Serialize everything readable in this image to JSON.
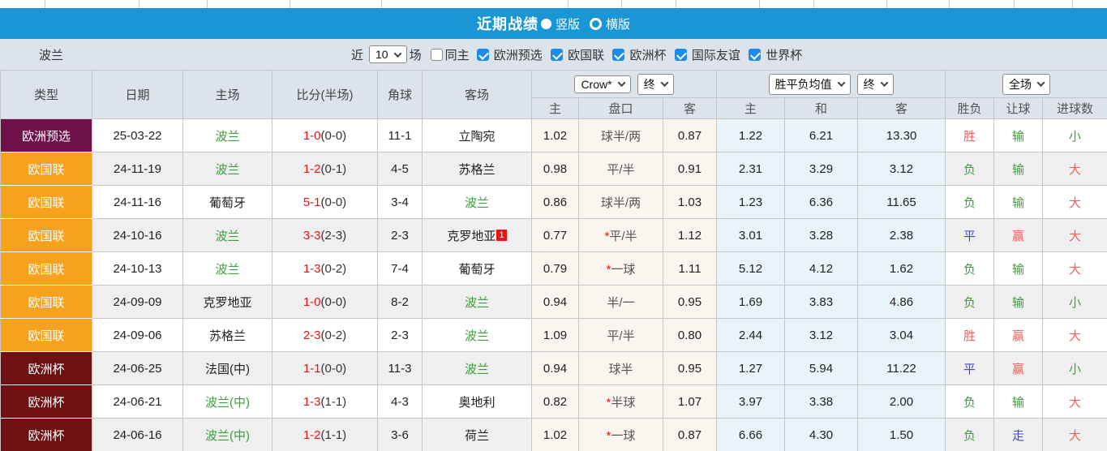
{
  "title_bar": {
    "title": "近期战绩",
    "layout_options": [
      {
        "label": "竖版",
        "selected": true
      },
      {
        "label": "横版",
        "selected": false
      }
    ]
  },
  "filter_bar": {
    "team_name": "波兰",
    "recent_prefix": "近",
    "recent_count": "10",
    "recent_suffix": "场",
    "same_home": {
      "label": "同主",
      "checked": false
    },
    "competitions": [
      {
        "label": "欧洲预选",
        "checked": true
      },
      {
        "label": "欧国联",
        "checked": true
      },
      {
        "label": "欧洲杯",
        "checked": true
      },
      {
        "label": "国际友谊",
        "checked": true
      },
      {
        "label": "世界杯",
        "checked": true
      }
    ]
  },
  "table": {
    "static_headers": [
      "类型",
      "日期",
      "主场",
      "比分(半场)",
      "角球",
      "客场"
    ],
    "odds_group": {
      "company_select": "Crow*",
      "time_select": "终",
      "subheaders": [
        "主",
        "盘口",
        "客"
      ]
    },
    "avg_group": {
      "name_select": "胜平负均值",
      "time_select": "终",
      "subheaders": [
        "主",
        "和",
        "客"
      ]
    },
    "result_group": {
      "scope_select": "全场",
      "subheaders": [
        "胜负",
        "让球",
        "进球数"
      ]
    },
    "rows": [
      {
        "type": "欧洲预选",
        "date": "25-03-22",
        "home": "波兰",
        "home_focus": true,
        "score": "1-0",
        "half": "(0-0)",
        "corners": "11-1",
        "away": "立陶宛",
        "away_focus": false,
        "away_badge": "",
        "odds": [
          "1.02",
          "球半/两",
          "0.87"
        ],
        "handicap_star": false,
        "avg": [
          "1.22",
          "6.21",
          "13.30"
        ],
        "results": [
          {
            "text": "胜",
            "color": "red"
          },
          {
            "text": "输",
            "color": "green"
          },
          {
            "text": "小",
            "color": "green"
          }
        ]
      },
      {
        "type": "欧国联",
        "date": "24-11-19",
        "home": "波兰",
        "home_focus": true,
        "score": "1-2",
        "half": "(0-1)",
        "corners": "4-5",
        "away": "苏格兰",
        "away_focus": false,
        "away_badge": "",
        "odds": [
          "0.98",
          "平/半",
          "0.91"
        ],
        "handicap_star": false,
        "avg": [
          "2.31",
          "3.29",
          "3.12"
        ],
        "results": [
          {
            "text": "负",
            "color": "green"
          },
          {
            "text": "输",
            "color": "green"
          },
          {
            "text": "大",
            "color": "red"
          }
        ]
      },
      {
        "type": "欧国联",
        "date": "24-11-16",
        "home": "葡萄牙",
        "home_focus": false,
        "score": "5-1",
        "half": "(0-0)",
        "corners": "3-4",
        "away": "波兰",
        "away_focus": true,
        "away_badge": "",
        "odds": [
          "0.86",
          "球半/两",
          "1.03"
        ],
        "handicap_star": false,
        "avg": [
          "1.23",
          "6.36",
          "11.65"
        ],
        "results": [
          {
            "text": "负",
            "color": "green"
          },
          {
            "text": "输",
            "color": "green"
          },
          {
            "text": "大",
            "color": "red"
          }
        ]
      },
      {
        "type": "欧国联",
        "date": "24-10-16",
        "home": "波兰",
        "home_focus": true,
        "score": "3-3",
        "half": "(2-3)",
        "corners": "2-3",
        "away": "克罗地亚",
        "away_focus": false,
        "away_badge": "1",
        "odds": [
          "0.77",
          "平/半",
          "1.12"
        ],
        "handicap_star": true,
        "avg": [
          "3.01",
          "3.28",
          "2.38"
        ],
        "results": [
          {
            "text": "平",
            "color": "blue"
          },
          {
            "text": "赢",
            "color": "red"
          },
          {
            "text": "大",
            "color": "red"
          }
        ]
      },
      {
        "type": "欧国联",
        "date": "24-10-13",
        "home": "波兰",
        "home_focus": true,
        "score": "1-3",
        "half": "(0-2)",
        "corners": "7-4",
        "away": "葡萄牙",
        "away_focus": false,
        "away_badge": "",
        "odds": [
          "0.79",
          "一球",
          "1.11"
        ],
        "handicap_star": true,
        "avg": [
          "5.12",
          "4.12",
          "1.62"
        ],
        "results": [
          {
            "text": "负",
            "color": "green"
          },
          {
            "text": "输",
            "color": "green"
          },
          {
            "text": "大",
            "color": "red"
          }
        ]
      },
      {
        "type": "欧国联",
        "date": "24-09-09",
        "home": "克罗地亚",
        "home_focus": false,
        "score": "1-0",
        "half": "(0-0)",
        "corners": "8-2",
        "away": "波兰",
        "away_focus": true,
        "away_badge": "",
        "odds": [
          "0.94",
          "半/一",
          "0.95"
        ],
        "handicap_star": false,
        "avg": [
          "1.69",
          "3.83",
          "4.86"
        ],
        "results": [
          {
            "text": "负",
            "color": "green"
          },
          {
            "text": "输",
            "color": "green"
          },
          {
            "text": "小",
            "color": "green"
          }
        ]
      },
      {
        "type": "欧国联",
        "date": "24-09-06",
        "home": "苏格兰",
        "home_focus": false,
        "score": "2-3",
        "half": "(0-2)",
        "corners": "2-3",
        "away": "波兰",
        "away_focus": true,
        "away_badge": "",
        "odds": [
          "1.09",
          "平/半",
          "0.80"
        ],
        "handicap_star": false,
        "avg": [
          "2.44",
          "3.12",
          "3.04"
        ],
        "results": [
          {
            "text": "胜",
            "color": "red"
          },
          {
            "text": "赢",
            "color": "red"
          },
          {
            "text": "大",
            "color": "red"
          }
        ]
      },
      {
        "type": "欧洲杯",
        "date": "24-06-25",
        "home": "法国(中)",
        "home_focus": false,
        "score": "1-1",
        "half": "(0-0)",
        "corners": "11-3",
        "away": "波兰",
        "away_focus": true,
        "away_badge": "",
        "odds": [
          "0.94",
          "球半",
          "0.95"
        ],
        "handicap_star": false,
        "avg": [
          "1.27",
          "5.94",
          "11.22"
        ],
        "results": [
          {
            "text": "平",
            "color": "blue"
          },
          {
            "text": "赢",
            "color": "red"
          },
          {
            "text": "小",
            "color": "green"
          }
        ]
      },
      {
        "type": "欧洲杯",
        "date": "24-06-21",
        "home": "波兰(中)",
        "home_focus": true,
        "score": "1-3",
        "half": "(1-1)",
        "corners": "4-3",
        "away": "奥地利",
        "away_focus": false,
        "away_badge": "",
        "odds": [
          "0.82",
          "半球",
          "1.07"
        ],
        "handicap_star": true,
        "avg": [
          "3.97",
          "3.38",
          "2.00"
        ],
        "results": [
          {
            "text": "负",
            "color": "green"
          },
          {
            "text": "输",
            "color": "green"
          },
          {
            "text": "大",
            "color": "red"
          }
        ]
      },
      {
        "type": "欧洲杯",
        "date": "24-06-16",
        "home": "波兰(中)",
        "home_focus": true,
        "score": "1-2",
        "half": "(1-1)",
        "corners": "3-6",
        "away": "荷兰",
        "away_focus": false,
        "away_badge": "",
        "odds": [
          "1.02",
          "一球",
          "0.87"
        ],
        "handicap_star": true,
        "avg": [
          "6.66",
          "4.30",
          "1.50"
        ],
        "results": [
          {
            "text": "负",
            "color": "green"
          },
          {
            "text": "走",
            "color": "blue"
          },
          {
            "text": "大",
            "color": "red"
          }
        ]
      }
    ]
  },
  "colors": {
    "accent_blue": "#1a96d5",
    "filter_bg": "#dde3ea",
    "header_bg": "#dce3ea",
    "checkbox_blue": "#1c8ce8",
    "type_colors": {
      "欧洲预选": "#70104a",
      "欧国联": "#f7a21d",
      "欧洲杯": "#6e1011"
    },
    "focus_team_green": "#3c9e3c",
    "score_red": "#ee1111",
    "result_red": "#ef6060",
    "result_green": "#3c9e3c",
    "result_blue": "#4545dd",
    "odds_col_bg": "#faf5ee",
    "avg_col_bg": "#e9f3fa"
  }
}
